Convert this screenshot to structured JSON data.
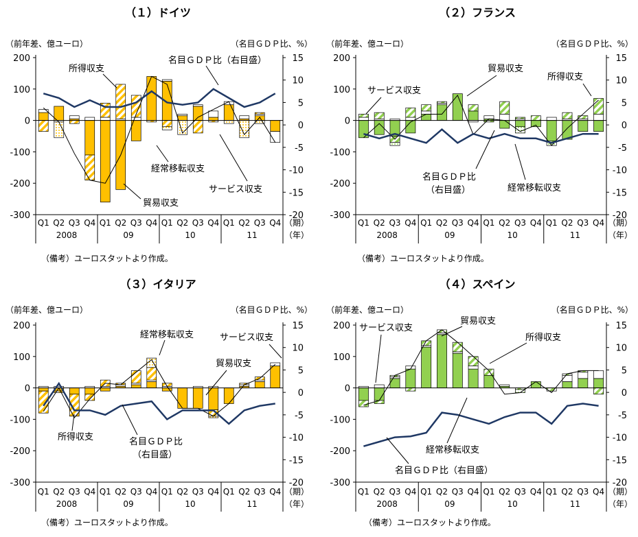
{
  "common": {
    "left_unit": "（前年差、億ユーロ）",
    "right_unit": "（名目ＧＤＰ比、%）",
    "period_label": "（期）",
    "year_label": "（年）",
    "note": "（備考）ユーロスタットより作成。",
    "quarters": [
      "Q1",
      "Q2",
      "Q3",
      "Q4",
      "Q1",
      "Q2",
      "Q3",
      "Q4",
      "Q1",
      "Q2",
      "Q3",
      "Q4",
      "Q1",
      "Q2",
      "Q3",
      "Q4"
    ],
    "years": [
      "2008",
      "09",
      "10",
      "11"
    ],
    "left_ticks": [
      "200",
      "100",
      "0",
      "-100",
      "-200",
      "-300"
    ],
    "right_ticks": [
      "15",
      "10",
      "5",
      "0",
      "-5",
      "-10",
      "-15",
      "-20"
    ]
  },
  "chart_data": [
    {
      "type": "bar",
      "title": "（１）ドイツ",
      "ylim": [
        -300,
        200
      ],
      "y2lim": [
        -20,
        15
      ],
      "colors": {
        "trade": "#ffc000",
        "income": "#ffc000",
        "services": "#ffffff",
        "transfers": "#fde9a9",
        "line": "#1f3864"
      },
      "series": [
        {
          "key": "trade",
          "values": [
            25,
            45,
            5,
            -110,
            -260,
            -220,
            -65,
            140,
            125,
            15,
            45,
            10,
            50,
            5,
            15,
            -35
          ]
        },
        {
          "key": "services",
          "values": [
            10,
            -5,
            10,
            10,
            10,
            5,
            10,
            0,
            5,
            5,
            5,
            20,
            10,
            10,
            5,
            -35
          ]
        },
        {
          "key": "income",
          "values": [
            -35,
            0,
            -10,
            -80,
            45,
            110,
            70,
            -5,
            -20,
            0,
            -40,
            -5,
            0,
            0,
            5,
            0
          ]
        },
        {
          "key": "transfers",
          "values": [
            0,
            -50,
            0,
            0,
            0,
            0,
            0,
            0,
            -10,
            -45,
            0,
            0,
            -10,
            -55,
            -10,
            0
          ]
        }
      ],
      "total": [
        40,
        -5,
        -105,
        -190,
        -200,
        -110,
        20,
        140,
        115,
        -40,
        10,
        35,
        60,
        -45,
        10,
        -70
      ],
      "gdp_ratio": [
        7,
        6,
        4,
        5.5,
        4,
        4,
        5,
        7.5,
        5,
        4.5,
        5,
        8,
        6,
        4,
        5,
        7
      ],
      "annotations": [
        "所得収支",
        "名目ＧＤＰ比（右目盛）",
        "経常移転収支",
        "貿易収支",
        "サービス収支"
      ]
    },
    {
      "type": "bar",
      "title": "（２）フランス",
      "ylim": [
        -300,
        200
      ],
      "y2lim": [
        -20,
        15
      ],
      "colors": {
        "trade": "#92d050",
        "income": "#92d050",
        "services": "#ffffff",
        "transfers": "#92d050",
        "line": "#1f3864"
      },
      "series": [
        {
          "key": "trade",
          "values": [
            -55,
            -45,
            -50,
            -40,
            20,
            50,
            85,
            30,
            5,
            -25,
            -20,
            -20,
            -65,
            -60,
            -35,
            -35
          ]
        },
        {
          "key": "services",
          "values": [
            10,
            5,
            5,
            10,
            10,
            5,
            0,
            -5,
            10,
            20,
            5,
            0,
            10,
            5,
            5,
            20
          ]
        },
        {
          "key": "income",
          "values": [
            10,
            20,
            -20,
            30,
            20,
            5,
            0,
            20,
            -5,
            40,
            5,
            15,
            -5,
            20,
            10,
            50
          ]
        },
        {
          "key": "transfers",
          "values": [
            0,
            0,
            -10,
            0,
            0,
            0,
            0,
            0,
            0,
            0,
            -20,
            0,
            -10,
            0,
            0,
            0
          ]
        }
      ],
      "total": [
        -55,
        -10,
        -60,
        -5,
        20,
        20,
        80,
        -45,
        5,
        0,
        -35,
        -15,
        -80,
        -25,
        20,
        65
      ],
      "gdp_ratio": [
        -2,
        -3,
        -2,
        -3,
        -4,
        -1,
        -4,
        -2,
        -3,
        -2,
        -3,
        -3,
        -4,
        -3,
        -2,
        -2
      ],
      "annotations": [
        "サービス収支",
        "貿易収支",
        "所得収支",
        "名目ＧＤＰ比",
        "（右目盛）",
        "経常移転収支"
      ]
    },
    {
      "type": "bar",
      "title": "（３）イタリア",
      "ylim": [
        -300,
        200
      ],
      "y2lim": [
        -20,
        15
      ],
      "colors": {
        "trade": "#ffc000",
        "income": "#ffc000",
        "services": "#ffffff",
        "transfers": "#fde9a9",
        "line": "#1f3864"
      },
      "series": [
        {
          "key": "trade",
          "values": [
            -10,
            -10,
            -20,
            -20,
            -10,
            5,
            10,
            20,
            -10,
            -65,
            -65,
            -70,
            -50,
            5,
            20,
            70
          ]
        },
        {
          "key": "services",
          "values": [
            5,
            5,
            0,
            5,
            5,
            5,
            5,
            5,
            5,
            0,
            5,
            5,
            0,
            5,
            5,
            10
          ]
        },
        {
          "key": "income",
          "values": [
            -70,
            -5,
            -70,
            -20,
            20,
            5,
            40,
            40,
            10,
            0,
            0,
            -20,
            0,
            5,
            10,
            0
          ]
        },
        {
          "key": "transfers",
          "values": [
            0,
            0,
            0,
            0,
            0,
            0,
            0,
            30,
            0,
            0,
            0,
            -5,
            0,
            0,
            0,
            0
          ]
        }
      ],
      "total": [
        -75,
        0,
        -95,
        -35,
        15,
        10,
        50,
        90,
        5,
        -65,
        -65,
        -90,
        -50,
        10,
        30,
        75
      ],
      "gdp_ratio": [
        -3,
        2,
        -4,
        -4,
        -5,
        -3,
        -2.5,
        -2,
        -6,
        -4,
        -4,
        -4,
        -7,
        -4,
        -3,
        -2.5
      ],
      "annotations": [
        "経常移転収支",
        "サービス収支",
        "貿易収支",
        "所得収支",
        "名目ＧＤＰ比",
        "（右目盛）"
      ]
    },
    {
      "type": "bar",
      "title": "（４）スペイン",
      "ylim": [
        -300,
        200
      ],
      "y2lim": [
        -20,
        15
      ],
      "colors": {
        "trade": "#92d050",
        "income": "#92d050",
        "services": "#ffffff",
        "transfers": "#92d050",
        "line": "#1f3864"
      },
      "series": [
        {
          "key": "trade",
          "values": [
            -40,
            -40,
            30,
            60,
            130,
            170,
            110,
            60,
            40,
            5,
            0,
            20,
            0,
            20,
            30,
            30
          ]
        },
        {
          "key": "services",
          "values": [
            5,
            10,
            5,
            10,
            5,
            5,
            5,
            10,
            0,
            5,
            0,
            0,
            0,
            20,
            20,
            25
          ]
        },
        {
          "key": "income",
          "values": [
            -20,
            -10,
            5,
            -10,
            15,
            10,
            30,
            30,
            20,
            0,
            -5,
            0,
            -10,
            5,
            5,
            -20
          ]
        },
        {
          "key": "transfers",
          "values": [
            0,
            0,
            0,
            0,
            0,
            0,
            0,
            0,
            0,
            0,
            -10,
            0,
            0,
            0,
            0,
            0
          ]
        }
      ],
      "total": [
        -55,
        -40,
        40,
        60,
        150,
        185,
        145,
        100,
        55,
        -20,
        -15,
        20,
        -15,
        45,
        55,
        55
      ],
      "gdp_ratio": [
        -12,
        -11,
        -10,
        -9.8,
        -9,
        -4.5,
        -5,
        -6,
        -7,
        -5.5,
        -4.5,
        -4.5,
        -7,
        -3,
        -2.5,
        -3
      ],
      "annotations": [
        "サービス収支",
        "貿易収支",
        "所得収支",
        "経常移転収支",
        "名目ＧＤＰ比（右目盛）"
      ]
    }
  ]
}
